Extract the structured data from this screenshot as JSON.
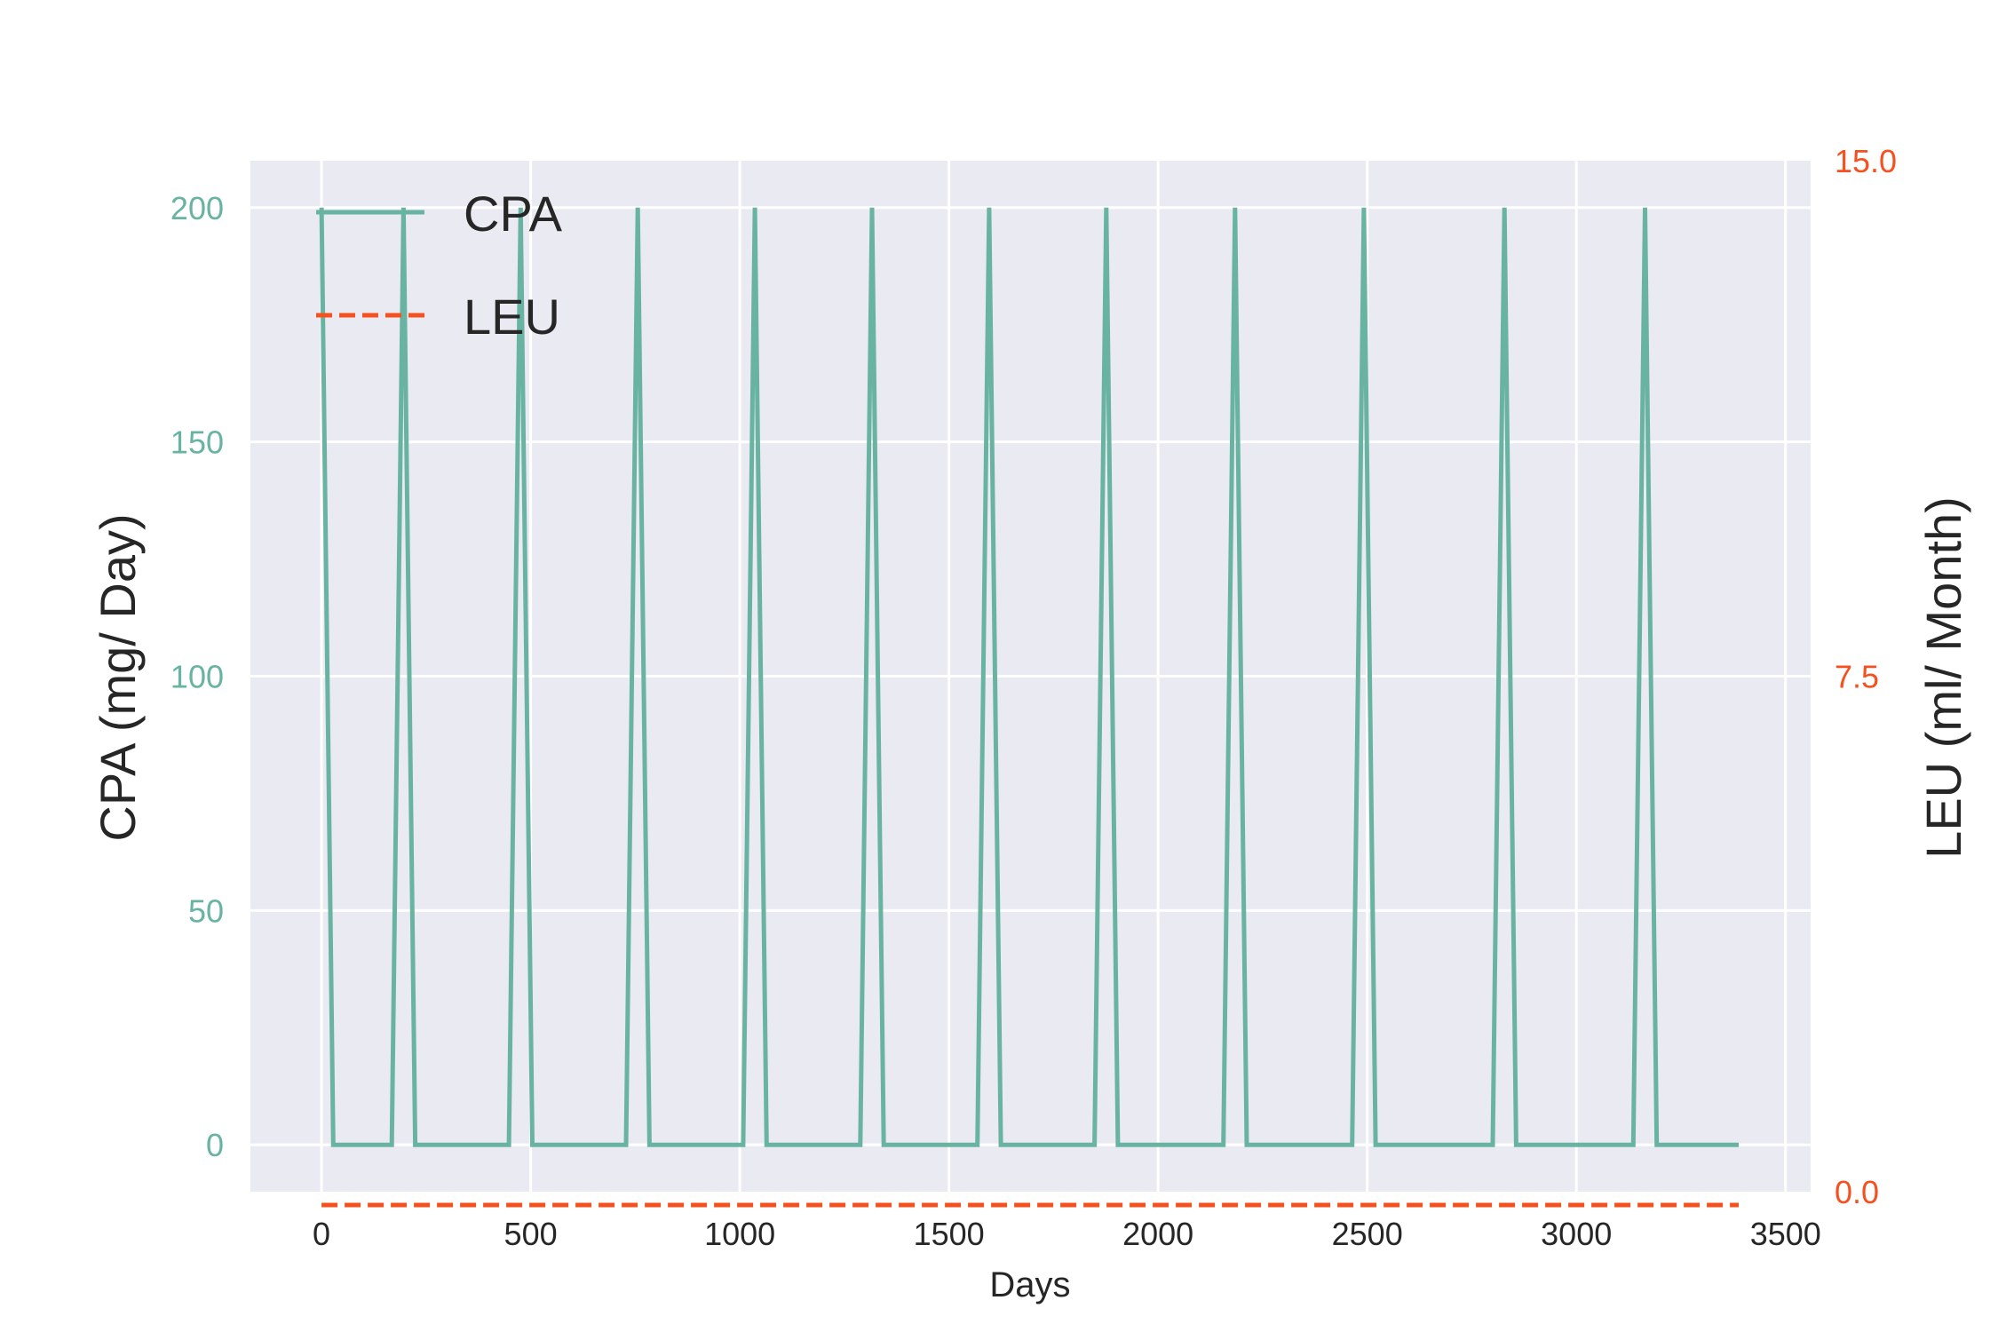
{
  "chart_data": {
    "type": "line",
    "xlabel": "Days",
    "ylabel_left": "CPA (mg/ Day)",
    "ylabel_right": "LEU (ml/ Month)",
    "xlim": [
      -170,
      3560
    ],
    "ylim_left": [
      -10,
      210
    ],
    "ylim_right": [
      0,
      15
    ],
    "xticks": [
      0,
      500,
      1000,
      1500,
      2000,
      2500,
      3000,
      3500
    ],
    "yticks_left": [
      0,
      50,
      100,
      150,
      200
    ],
    "yticks_right": [
      0.0,
      7.5,
      15.0
    ],
    "ytick_labels_right": [
      "0.0",
      "7.5",
      "15.0"
    ],
    "grid": true,
    "legend_position": "upper-left",
    "colors": {
      "background": "#eaeaf2",
      "grid": "#ffffff",
      "cpa": "#69b3a2",
      "leu": "#f5501e",
      "text": "#262626"
    },
    "series": [
      {
        "name": "CPA",
        "axis": "left",
        "style": "solid",
        "x": [
          0,
          28,
          168,
          196,
          224,
          448,
          476,
          504,
          728,
          756,
          784,
          1008,
          1036,
          1064,
          1288,
          1316,
          1344,
          1568,
          1596,
          1624,
          1848,
          1876,
          1904,
          2156,
          2184,
          2212,
          2464,
          2492,
          2520,
          2800,
          2828,
          2856,
          3136,
          3164,
          3192,
          3388
        ],
        "y": [
          200,
          0,
          0,
          200,
          0,
          0,
          200,
          0,
          0,
          200,
          0,
          0,
          200,
          0,
          0,
          200,
          0,
          0,
          200,
          0,
          0,
          200,
          0,
          0,
          200,
          0,
          0,
          200,
          0,
          0,
          200,
          0,
          0,
          200,
          0,
          0
        ]
      },
      {
        "name": "LEU",
        "axis": "right",
        "style": "dashed",
        "x": [
          0,
          3388
        ],
        "y": [
          0,
          0
        ]
      }
    ]
  }
}
